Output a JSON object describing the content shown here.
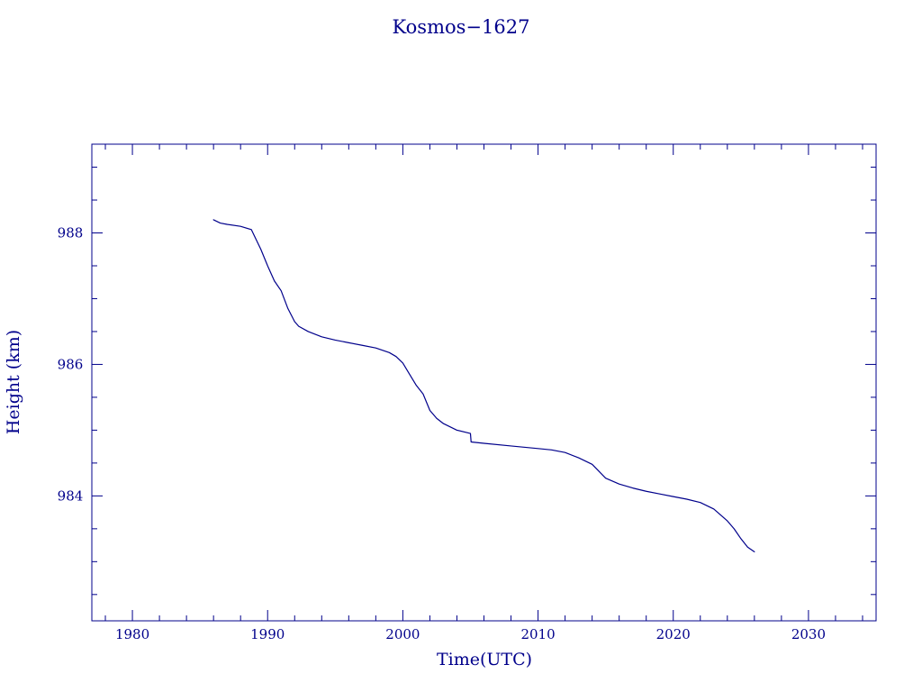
{
  "chart_data": {
    "type": "line",
    "title": "Kosmos−1627",
    "xlabel": "Time(UTC)",
    "ylabel": "Height (km)",
    "xlim": [
      1977,
      2035
    ],
    "ylim": [
      982.1,
      989.35
    ],
    "x_ticks": [
      1980,
      1990,
      2000,
      2010,
      2020,
      2030
    ],
    "x_tick_labels": [
      "1980",
      "1990",
      "2000",
      "2010",
      "2020",
      "2030"
    ],
    "y_ticks": [
      984,
      986,
      988
    ],
    "y_tick_labels": [
      "984",
      "986",
      "988"
    ],
    "grid": false,
    "color": "#00008b",
    "series": [
      {
        "x": [
          1986.0,
          1986.5,
          1987.0,
          1988.0,
          1988.8,
          1989.5,
          1990.0,
          1990.5,
          1991.0,
          1991.5,
          1992.0,
          1992.3,
          1993.0,
          1994.0,
          1995.0,
          1996.0,
          1997.0,
          1998.0,
          1999.0,
          1999.5,
          2000.0,
          2000.5,
          2001.0,
          2001.5,
          2002.0,
          2002.5,
          2003.0,
          2004.0,
          2005.0,
          2005.05,
          2006.0,
          2008.0,
          2010.0,
          2011.0,
          2012.0,
          2013.0,
          2014.0,
          2015.0,
          2016.0,
          2017.0,
          2018.0,
          2019.0,
          2020.0,
          2021.0,
          2022.0,
          2023.0,
          2024.0,
          2024.5,
          2025.0,
          2025.5,
          2026.0
        ],
        "y": [
          988.2,
          988.15,
          988.13,
          988.1,
          988.05,
          987.75,
          987.5,
          987.27,
          987.12,
          986.85,
          986.65,
          986.58,
          986.5,
          986.42,
          986.37,
          986.33,
          986.29,
          986.25,
          986.18,
          986.12,
          986.02,
          985.85,
          985.68,
          985.55,
          985.3,
          985.18,
          985.1,
          985.0,
          984.95,
          984.82,
          984.8,
          984.76,
          984.72,
          984.7,
          984.66,
          984.58,
          984.48,
          984.27,
          984.18,
          984.12,
          984.07,
          984.03,
          983.99,
          983.95,
          983.9,
          983.8,
          983.62,
          983.5,
          983.35,
          983.22,
          983.15
        ]
      }
    ]
  }
}
